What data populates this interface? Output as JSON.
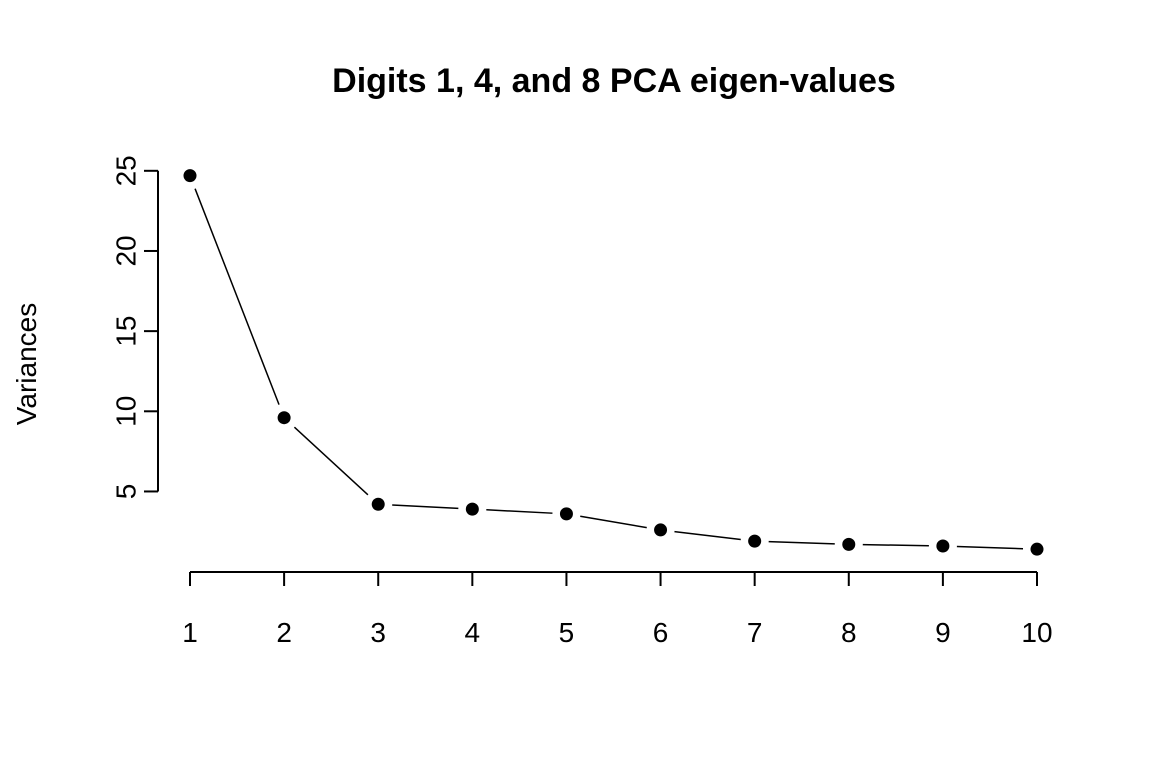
{
  "chart_data": {
    "type": "line",
    "title": "Digits 1, 4, and 8 PCA eigen-values",
    "xlabel": "",
    "ylabel": "Variances",
    "x": [
      1,
      2,
      3,
      4,
      5,
      6,
      7,
      8,
      9,
      10
    ],
    "xticks": [
      "1",
      "2",
      "3",
      "4",
      "5",
      "6",
      "7",
      "8",
      "9",
      "10"
    ],
    "yticks": [
      5,
      10,
      15,
      20,
      25
    ],
    "ylim": [
      0.6,
      25.3
    ],
    "grid": false,
    "series": [
      {
        "values": [
          24.7,
          9.6,
          4.2,
          3.9,
          3.6,
          2.6,
          1.9,
          1.7,
          1.6,
          1.4
        ]
      }
    ]
  }
}
